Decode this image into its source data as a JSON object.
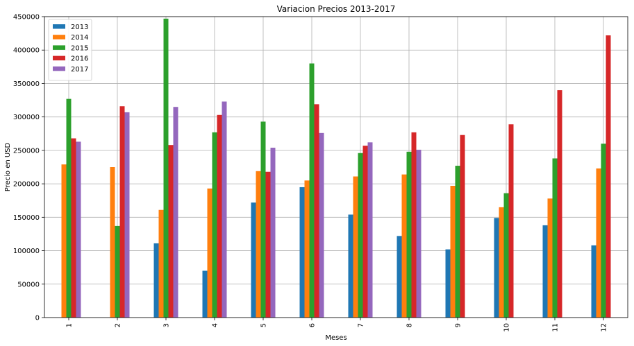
{
  "chart_data": {
    "type": "bar",
    "title": "Variacion Precios 2013-2017",
    "xlabel": "Meses",
    "ylabel": "Precio en USD",
    "categories": [
      "1",
      "2",
      "3",
      "4",
      "5",
      "6",
      "7",
      "8",
      "9",
      "10",
      "11",
      "12"
    ],
    "ylim": [
      0,
      450000
    ],
    "yticks": [
      0,
      50000,
      100000,
      150000,
      200000,
      250000,
      300000,
      350000,
      400000,
      450000
    ],
    "grid": true,
    "legend_position": "top-left",
    "series": [
      {
        "name": "2013",
        "color": "#1f77b4",
        "values": [
          null,
          null,
          111000,
          70000,
          172000,
          195000,
          154000,
          122000,
          102000,
          149000,
          138000,
          108000
        ]
      },
      {
        "name": "2014",
        "color": "#ff7f0e",
        "values": [
          229000,
          225000,
          161000,
          193000,
          219000,
          205000,
          211000,
          214000,
          197000,
          165000,
          178000,
          223000
        ]
      },
      {
        "name": "2015",
        "color": "#2ca02c",
        "values": [
          327000,
          137000,
          447000,
          277000,
          293000,
          380000,
          246000,
          248000,
          227000,
          186000,
          238000,
          260000
        ]
      },
      {
        "name": "2016",
        "color": "#d62728",
        "values": [
          268000,
          316000,
          258000,
          303000,
          218000,
          319000,
          257000,
          277000,
          273000,
          289000,
          340000,
          422000
        ]
      },
      {
        "name": "2017",
        "color": "#9467bd",
        "values": [
          263000,
          307000,
          315000,
          323000,
          254000,
          276000,
          262000,
          251000,
          null,
          null,
          null,
          null
        ]
      }
    ]
  }
}
